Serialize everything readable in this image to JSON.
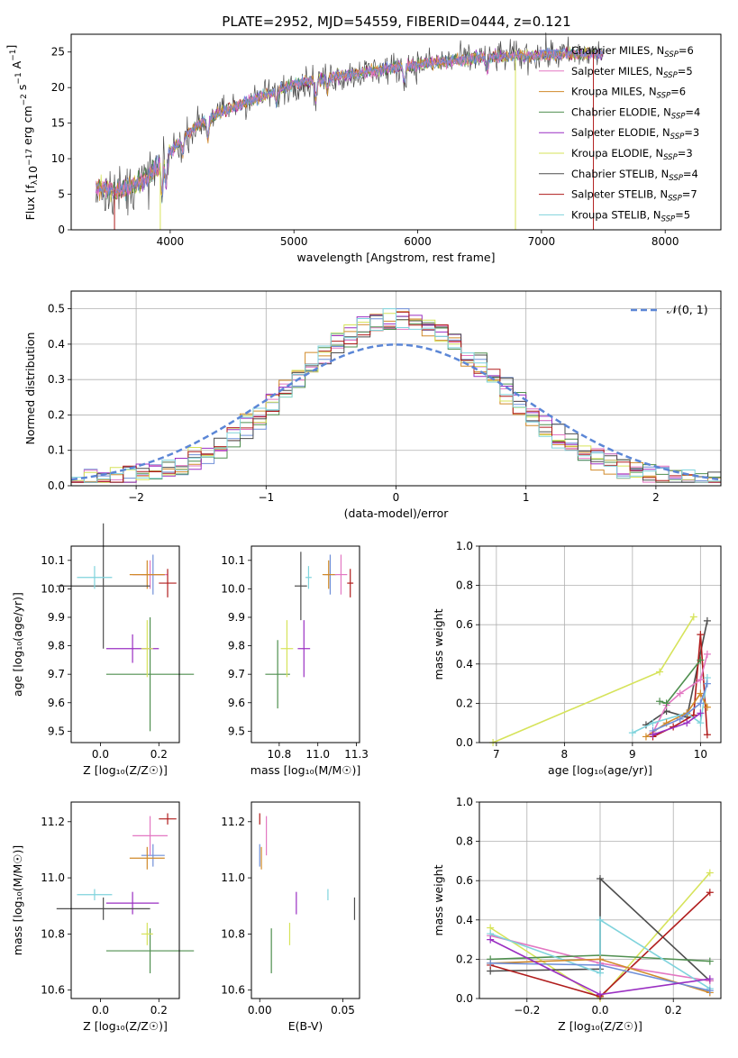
{
  "title": "PLATE=2952, MJD=54559, FIBERID=0444, z=0.121",
  "colors": {
    "chabrier_miles": "#6f8fd8",
    "salpeter_miles": "#e377c2",
    "kroupa_miles": "#d18a2a",
    "chabrier_elodie": "#4f8f4f",
    "salpeter_elodie": "#9a2fc2",
    "kroupa_elodie": "#d6e35a",
    "chabrier_stelib": "#4d4d4d",
    "salpeter_stelib": "#b01c1c",
    "kroupa_stelib": "#7fd3dc",
    "normal": "#5b86d6",
    "grid": "#b0b0b0"
  },
  "chart_data": [
    {
      "id": "spectrum",
      "type": "line",
      "xlabel": "wavelength [Angstrom, rest frame]",
      "ylabel": "Flux [f",
      "xlim": [
        3200,
        8450
      ],
      "ylim": [
        0,
        27.5
      ],
      "xticks": [
        4000,
        5000,
        6000,
        7000,
        8000
      ],
      "yticks": [
        0,
        5,
        10,
        15,
        20,
        25
      ],
      "grid": false,
      "legend_position": "top-right",
      "continuum_knots": [
        [
          3400,
          6
        ],
        [
          3600,
          5.5
        ],
        [
          3800,
          7
        ],
        [
          3900,
          9
        ],
        [
          4000,
          11
        ],
        [
          4200,
          14.5
        ],
        [
          4400,
          16.5
        ],
        [
          4700,
          18.5
        ],
        [
          5000,
          20.5
        ],
        [
          5500,
          22
        ],
        [
          6000,
          23.2
        ],
        [
          6500,
          24.2
        ],
        [
          7000,
          24.6
        ],
        [
          7500,
          24.8
        ]
      ],
      "series": [
        {
          "name": "Chabrier MILES, N",
          "sub": "SSP",
          "n": "=6",
          "color_key": "chabrier_miles"
        },
        {
          "name": "Salpeter MILES, N",
          "sub": "SSP",
          "n": "=5",
          "color_key": "salpeter_miles"
        },
        {
          "name": "Kroupa MILES, N",
          "sub": "SSP",
          "n": "=6",
          "color_key": "kroupa_miles"
        },
        {
          "name": "Chabrier ELODIE, N",
          "sub": "SSP",
          "n": "=4",
          "color_key": "chabrier_elodie"
        },
        {
          "name": "Salpeter ELODIE, N",
          "sub": "SSP",
          "n": "=3",
          "color_key": "salpeter_elodie"
        },
        {
          "name": "Kroupa ELODIE, N",
          "sub": "SSP",
          "n": "=3",
          "color_key": "kroupa_elodie"
        },
        {
          "name": "Chabrier STELIB, N",
          "sub": "SSP",
          "n": "=4",
          "color_key": "chabrier_stelib"
        },
        {
          "name": "Salpeter STELIB, N",
          "sub": "SSP",
          "n": "=7",
          "color_key": "salpeter_stelib"
        },
        {
          "name": "Kroupa STELIB, N",
          "sub": "SSP",
          "n": "=5",
          "color_key": "kroupa_stelib"
        }
      ]
    },
    {
      "id": "residuals",
      "type": "bar",
      "xlabel": "(data-model)/error",
      "ylabel": "Normed distribution",
      "xlim": [
        -2.5,
        2.5
      ],
      "ylim": [
        0,
        0.55
      ],
      "xticks": [
        -2,
        -1,
        0,
        1,
        2
      ],
      "yticks": [
        0.0,
        0.1,
        0.2,
        0.3,
        0.4,
        0.5
      ],
      "grid": true,
      "legend": "𝒩(0, 1)",
      "legend_position": "top-right",
      "bin_width": 0.1
    },
    {
      "id": "age_vs_Z",
      "type": "scatter",
      "xlabel": "Z [log₁₀(Z/Z☉)]",
      "ylabel": "age  [log₁₀(age/yr)]",
      "xlim": [
        -0.1,
        0.27
      ],
      "ylim": [
        9.46,
        10.15
      ],
      "xticks": [
        0.0,
        0.2
      ],
      "yticks": [
        9.5,
        9.6,
        9.7,
        9.8,
        9.9,
        10.0,
        10.1
      ],
      "grid": false,
      "points": [
        {
          "c": "chabrier_miles",
          "x": 0.18,
          "y": 10.05,
          "dx": 0.04,
          "dy": 0.07
        },
        {
          "c": "salpeter_miles",
          "x": 0.17,
          "y": 10.05,
          "dx": 0.06,
          "dy": 0.05
        },
        {
          "c": "kroupa_miles",
          "x": 0.16,
          "y": 10.05,
          "dx": 0.06,
          "dy": 0.05
        },
        {
          "c": "chabrier_elodie",
          "x": 0.17,
          "y": 9.7,
          "dx": 0.15,
          "dy": 0.2
        },
        {
          "c": "salpeter_elodie",
          "x": 0.11,
          "y": 9.79,
          "dx": 0.09,
          "dy": 0.05
        },
        {
          "c": "kroupa_elodie",
          "x": 0.16,
          "y": 9.79,
          "dx": 0.02,
          "dy": 0.1
        },
        {
          "c": "chabrier_stelib",
          "x": 0.01,
          "y": 10.01,
          "dx": 0.16,
          "dy": 0.22
        },
        {
          "c": "salpeter_stelib",
          "x": 0.23,
          "y": 10.02,
          "dx": 0.03,
          "dy": 0.05
        },
        {
          "c": "kroupa_stelib",
          "x": -0.02,
          "y": 10.04,
          "dx": 0.06,
          "dy": 0.04
        }
      ]
    },
    {
      "id": "age_vs_mass",
      "type": "scatter",
      "xlabel": "mass [log₁₀(M/M☉)]",
      "ylabel": "",
      "xlim": [
        10.57,
        11.27
      ],
      "ylim": [
        9.46,
        10.15
      ],
      "xticks": [
        10.75,
        11.0,
        11.25
      ],
      "yticks": [
        9.5,
        9.6,
        9.7,
        9.8,
        9.9,
        10.0,
        10.1
      ],
      "grid": false,
      "points": [
        {
          "c": "chabrier_miles",
          "x": 11.08,
          "y": 10.05,
          "dx": 0.04,
          "dy": 0.07
        },
        {
          "c": "salpeter_miles",
          "x": 11.15,
          "y": 10.05,
          "dx": 0.04,
          "dy": 0.07
        },
        {
          "c": "kroupa_miles",
          "x": 11.07,
          "y": 10.05,
          "dx": 0.04,
          "dy": 0.05
        },
        {
          "c": "chabrier_elodie",
          "x": 10.74,
          "y": 9.7,
          "dx": 0.08,
          "dy": 0.12
        },
        {
          "c": "salpeter_elodie",
          "x": 10.91,
          "y": 9.79,
          "dx": 0.04,
          "dy": 0.1
        },
        {
          "c": "kroupa_elodie",
          "x": 10.8,
          "y": 9.79,
          "dx": 0.04,
          "dy": 0.1
        },
        {
          "c": "chabrier_stelib",
          "x": 10.89,
          "y": 10.01,
          "dx": 0.04,
          "dy": 0.12
        },
        {
          "c": "salpeter_stelib",
          "x": 11.21,
          "y": 10.02,
          "dx": 0.02,
          "dy": 0.05
        },
        {
          "c": "kroupa_stelib",
          "x": 10.94,
          "y": 10.04,
          "dx": 0.02,
          "dy": 0.04
        }
      ]
    },
    {
      "id": "weight_vs_age",
      "type": "line",
      "xlabel": "age  [log₁₀(age/yr)]",
      "ylabel": "mass weight",
      "xlim": [
        6.75,
        10.3
      ],
      "ylim": [
        0,
        1.0
      ],
      "xticks": [
        7,
        8,
        9,
        10
      ],
      "yticks": [
        0.0,
        0.2,
        0.4,
        0.6,
        0.8,
        1.0
      ],
      "grid": true,
      "series": [
        {
          "c": "kroupa_elodie",
          "x": [
            6.95,
            9.4,
            9.9
          ],
          "y": [
            0.0,
            0.36,
            0.64
          ]
        },
        {
          "c": "chabrier_stelib",
          "x": [
            9.2,
            9.5,
            9.8,
            10.1
          ],
          "y": [
            0.09,
            0.16,
            0.13,
            0.62
          ]
        },
        {
          "c": "salpeter_stelib",
          "x": [
            9.3,
            9.6,
            9.9,
            10.0,
            10.1
          ],
          "y": [
            0.03,
            0.08,
            0.14,
            0.55,
            0.04
          ]
        },
        {
          "c": "salpeter_miles",
          "x": [
            9.3,
            9.5,
            9.7,
            10.0,
            10.1
          ],
          "y": [
            0.05,
            0.19,
            0.25,
            0.32,
            0.45
          ]
        },
        {
          "c": "chabrier_elodie",
          "x": [
            9.4,
            9.5,
            10.0
          ],
          "y": [
            0.21,
            0.2,
            0.42
          ]
        },
        {
          "c": "kroupa_stelib",
          "x": [
            9.0,
            9.3,
            9.8,
            10.0,
            10.1
          ],
          "y": [
            0.05,
            0.1,
            0.15,
            0.1,
            0.33
          ]
        },
        {
          "c": "kroupa_miles",
          "x": [
            9.2,
            9.5,
            9.8,
            10.0,
            10.1
          ],
          "y": [
            0.03,
            0.1,
            0.15,
            0.25,
            0.18
          ]
        },
        {
          "c": "chabrier_miles",
          "x": [
            9.3,
            9.7,
            10.0,
            10.1
          ],
          "y": [
            0.06,
            0.12,
            0.2,
            0.3
          ]
        },
        {
          "c": "salpeter_elodie",
          "x": [
            9.3,
            9.8,
            10.0
          ],
          "y": [
            0.04,
            0.1,
            0.15
          ]
        }
      ]
    },
    {
      "id": "mass_vs_Z",
      "type": "scatter",
      "xlabel": "Z [log₁₀(Z/Z☉)]",
      "ylabel": "mass [log₁₀(M/M☉)]",
      "xlim": [
        -0.1,
        0.27
      ],
      "ylim": [
        10.57,
        11.27
      ],
      "xticks": [
        0.0,
        0.2
      ],
      "yticks": [
        10.6,
        10.8,
        11.0,
        11.2
      ],
      "grid": false,
      "points": [
        {
          "c": "chabrier_miles",
          "x": 0.18,
          "y": 11.08,
          "dx": 0.04,
          "dy": 0.04
        },
        {
          "c": "salpeter_miles",
          "x": 0.17,
          "y": 11.15,
          "dx": 0.06,
          "dy": 0.07
        },
        {
          "c": "kroupa_miles",
          "x": 0.16,
          "y": 11.07,
          "dx": 0.06,
          "dy": 0.04
        },
        {
          "c": "chabrier_elodie",
          "x": 0.17,
          "y": 10.74,
          "dx": 0.15,
          "dy": 0.08
        },
        {
          "c": "salpeter_elodie",
          "x": 0.11,
          "y": 10.91,
          "dx": 0.09,
          "dy": 0.04
        },
        {
          "c": "kroupa_elodie",
          "x": 0.16,
          "y": 10.8,
          "dx": 0.02,
          "dy": 0.04
        },
        {
          "c": "chabrier_stelib",
          "x": 0.01,
          "y": 10.89,
          "dx": 0.16,
          "dy": 0.04
        },
        {
          "c": "salpeter_stelib",
          "x": 0.23,
          "y": 11.21,
          "dx": 0.03,
          "dy": 0.02
        },
        {
          "c": "kroupa_stelib",
          "x": -0.02,
          "y": 10.94,
          "dx": 0.06,
          "dy": 0.02
        }
      ]
    },
    {
      "id": "mass_vs_ebv",
      "type": "scatter",
      "xlabel": "E(B-V)",
      "ylabel": "",
      "xlim": [
        -0.005,
        0.06
      ],
      "ylim": [
        10.57,
        11.27
      ],
      "xticks": [
        0.0,
        0.05
      ],
      "yticks": [
        10.6,
        10.8,
        11.0,
        11.2
      ],
      "grid": false,
      "points": [
        {
          "c": "chabrier_miles",
          "x": 0.0,
          "y": 11.08,
          "dx": 0,
          "dy": 0.04
        },
        {
          "c": "salpeter_miles",
          "x": 0.004,
          "y": 11.15,
          "dx": 0,
          "dy": 0.07
        },
        {
          "c": "kroupa_miles",
          "x": 0.001,
          "y": 11.07,
          "dx": 0,
          "dy": 0.04
        },
        {
          "c": "chabrier_elodie",
          "x": 0.007,
          "y": 10.74,
          "dx": 0,
          "dy": 0.08
        },
        {
          "c": "salpeter_elodie",
          "x": 0.022,
          "y": 10.91,
          "dx": 0,
          "dy": 0.04
        },
        {
          "c": "kroupa_elodie",
          "x": 0.018,
          "y": 10.8,
          "dx": 0,
          "dy": 0.04
        },
        {
          "c": "chabrier_stelib",
          "x": 0.057,
          "y": 10.89,
          "dx": 0,
          "dy": 0.04
        },
        {
          "c": "salpeter_stelib",
          "x": 0.0,
          "y": 11.21,
          "dx": 0,
          "dy": 0.02
        },
        {
          "c": "kroupa_stelib",
          "x": 0.041,
          "y": 10.94,
          "dx": 0,
          "dy": 0.02
        }
      ]
    },
    {
      "id": "weight_vs_Z",
      "type": "line",
      "xlabel": "Z [log₁₀(Z/Z☉)]",
      "ylabel": "mass weight",
      "xlim": [
        -0.33,
        0.33
      ],
      "ylim": [
        0,
        1.0
      ],
      "xticks": [
        -0.2,
        0.0,
        0.2
      ],
      "yticks": [
        0.0,
        0.2,
        0.4,
        0.6,
        0.8,
        1.0
      ],
      "grid": true,
      "series": [
        {
          "c": "kroupa_elodie",
          "x": [
            -0.3,
            0.0,
            0.3
          ],
          "y": [
            0.36,
            0.0,
            0.64
          ]
        },
        {
          "c": "chabrier_stelib",
          "x": [
            -0.3,
            0.0,
            0.0,
            0.3
          ],
          "y": [
            0.14,
            0.15,
            0.61,
            0.09
          ]
        },
        {
          "c": "salpeter_stelib",
          "x": [
            -0.3,
            0.0,
            0.3
          ],
          "y": [
            0.17,
            0.01,
            0.54
          ]
        },
        {
          "c": "salpeter_miles",
          "x": [
            -0.3,
            0.0,
            0.3
          ],
          "y": [
            0.32,
            0.18,
            0.09
          ]
        },
        {
          "c": "chabrier_elodie",
          "x": [
            -0.3,
            0.0,
            0.3
          ],
          "y": [
            0.2,
            0.22,
            0.19
          ]
        },
        {
          "c": "kroupa_stelib",
          "x": [
            -0.3,
            0.0,
            0.0,
            0.3
          ],
          "y": [
            0.33,
            0.13,
            0.4,
            0.05
          ]
        },
        {
          "c": "kroupa_miles",
          "x": [
            -0.3,
            0.0,
            0.3
          ],
          "y": [
            0.18,
            0.2,
            0.03
          ]
        },
        {
          "c": "chabrier_miles",
          "x": [
            -0.3,
            0.0,
            0.3
          ],
          "y": [
            0.18,
            0.17,
            0.04
          ]
        },
        {
          "c": "salpeter_elodie",
          "x": [
            -0.3,
            0.0,
            0.3
          ],
          "y": [
            0.3,
            0.02,
            0.1
          ]
        }
      ]
    }
  ]
}
